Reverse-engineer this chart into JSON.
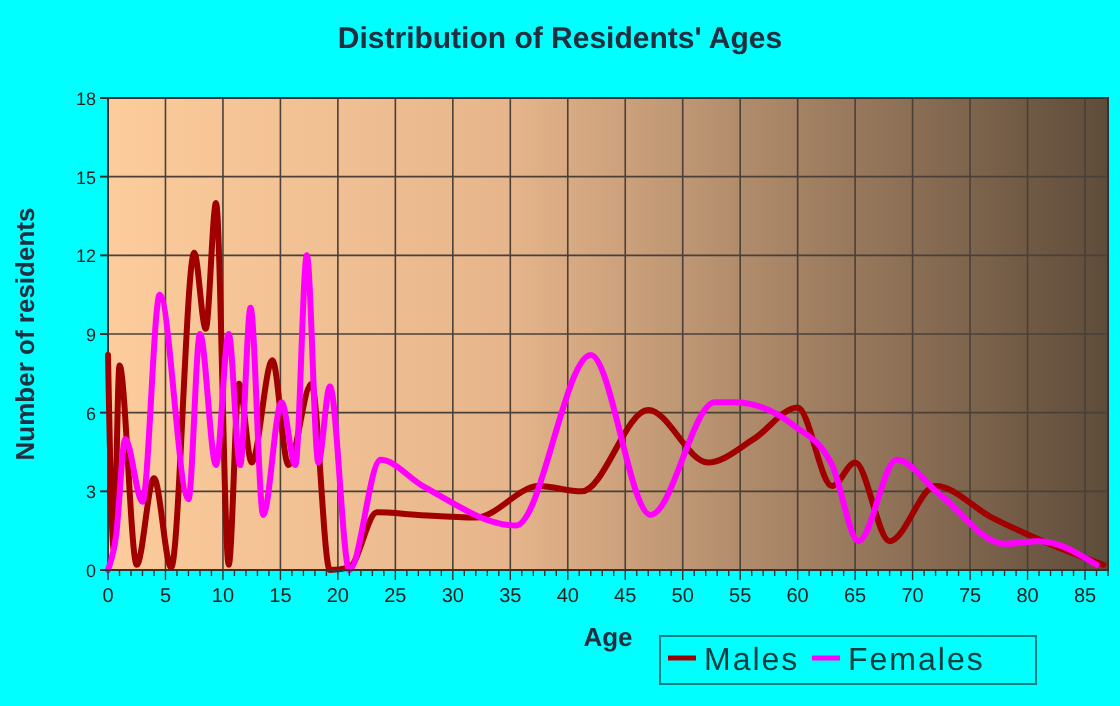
{
  "chart_data": {
    "type": "line",
    "title": "Distribution of Residents' Ages",
    "xlabel": "Age",
    "ylabel": "Number of residents",
    "xlim": [
      0,
      87
    ],
    "xticks": [
      0,
      5,
      10,
      15,
      20,
      25,
      30,
      35,
      40,
      45,
      50,
      55,
      60,
      65,
      70,
      75,
      80,
      85
    ],
    "ylim": [
      0,
      18
    ],
    "yticks": [
      0,
      3,
      6,
      9,
      12,
      15,
      18
    ],
    "grid": true,
    "legend": "bottom right",
    "series": [
      {
        "name": "Males",
        "color": "#a00000",
        "x": [
          0,
          0.5,
          1,
          2.5,
          4,
          5.5,
          7.5,
          8.5,
          9.4,
          10.5,
          11.4,
          12.5,
          14.3,
          15.7,
          17.7,
          19.3,
          21,
          23.4,
          27,
          32,
          37.5,
          41.2,
          47,
          52.2,
          56.2,
          60,
          63,
          65,
          68,
          72,
          76.9,
          80.3,
          86.6
        ],
        "values": [
          8.2,
          0.8,
          7.8,
          0.2,
          3.5,
          0.1,
          12.1,
          9.2,
          14,
          0.2,
          7.1,
          4.1,
          8,
          4,
          7.1,
          0,
          0.1,
          2.2,
          2.1,
          2,
          3.2,
          3,
          6.1,
          4.1,
          5,
          6.2,
          3.2,
          4.1,
          1.1,
          3.2,
          2,
          1.3,
          0.2
        ]
      },
      {
        "name": "Females",
        "color": "#ff00ff",
        "x": [
          0,
          0.7,
          1.5,
          3,
          4.5,
          7,
          8,
          9.4,
          10.5,
          11.5,
          12.4,
          13.5,
          15.1,
          16.3,
          17.3,
          18.3,
          19.3,
          21,
          23.7,
          27.4,
          35.5,
          42,
          47.2,
          52.8,
          54.5,
          59.7,
          63,
          65.3,
          68.6,
          72.3,
          78,
          81,
          86
        ],
        "values": [
          0,
          1.3,
          5,
          2.6,
          10.5,
          2.7,
          9,
          4,
          9,
          4,
          10,
          2.1,
          6.4,
          4,
          12,
          4.1,
          7,
          0,
          4.2,
          3.2,
          1.7,
          8.2,
          2.1,
          6.4,
          6.4,
          5.5,
          4,
          1.1,
          4.2,
          2.9,
          1,
          1.1,
          0.2
        ]
      }
    ]
  }
}
